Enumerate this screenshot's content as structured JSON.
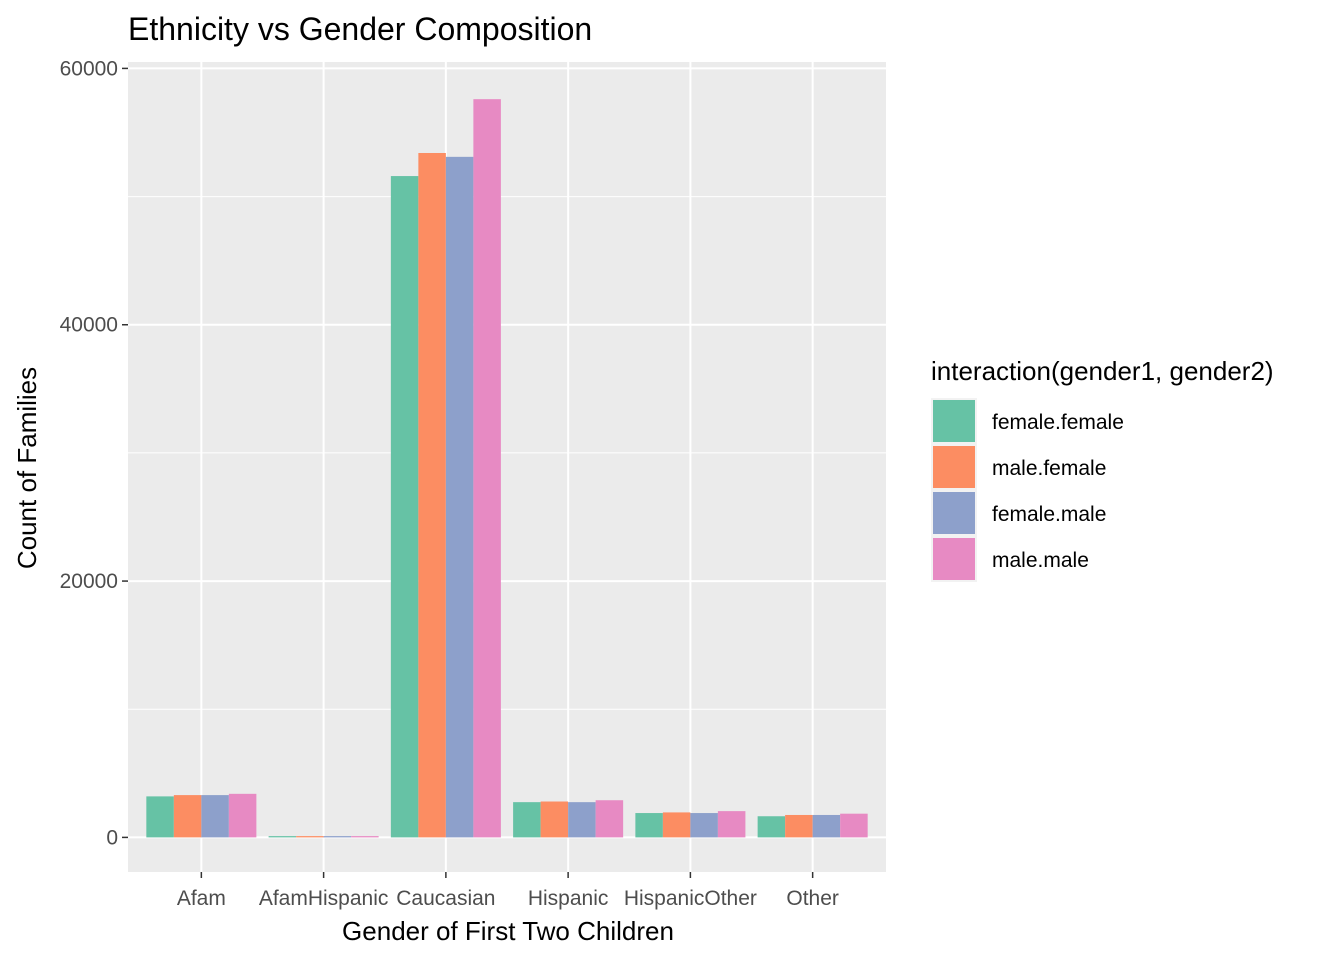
{
  "chart_data": {
    "type": "bar",
    "title": "Ethnicity vs Gender Composition",
    "xlabel": "Gender of First Two Children",
    "ylabel": "Count of Families",
    "categories": [
      "Afam",
      "AfamHispanic",
      "Caucasian",
      "Hispanic",
      "HispanicOther",
      "Other"
    ],
    "yticks": [
      "0",
      "20000",
      "40000",
      "60000"
    ],
    "ylim": [
      -2700,
      60500
    ],
    "legend": {
      "title": "interaction(gender1, gender2)",
      "placement": "right"
    },
    "series": [
      {
        "name": "female.female",
        "color": "#66c2a5",
        "values": [
          3200,
          100,
          51600,
          2750,
          1900,
          1650
        ]
      },
      {
        "name": "male.female",
        "color": "#fc8d62",
        "values": [
          3300,
          100,
          53400,
          2800,
          1950,
          1750
        ]
      },
      {
        "name": "female.male",
        "color": "#8da0cb",
        "values": [
          3300,
          100,
          53100,
          2750,
          1900,
          1750
        ]
      },
      {
        "name": "male.male",
        "color": "#e78ac3",
        "values": [
          3400,
          100,
          57600,
          2900,
          2050,
          1850
        ]
      }
    ],
    "panel_background": "#ebebeb",
    "grid": true
  }
}
